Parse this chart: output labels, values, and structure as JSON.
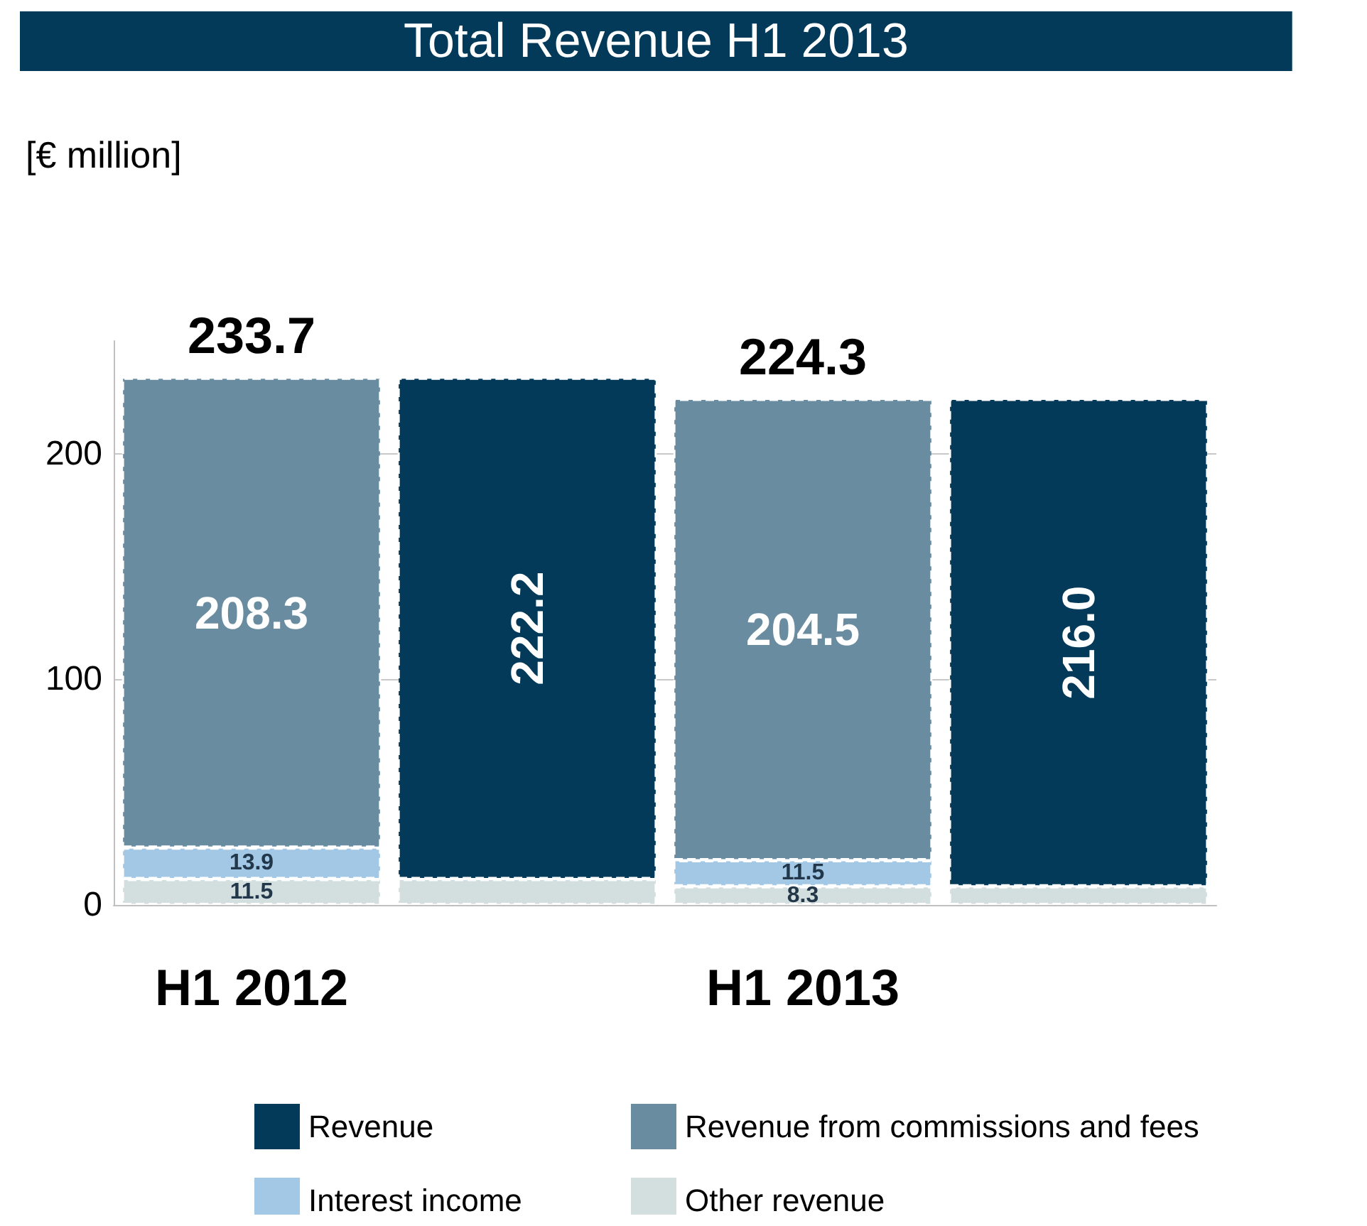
{
  "chart_data": {
    "type": "bar",
    "title": "Total Revenue H1 2013",
    "ylabel": "[€ million]",
    "categories": [
      "H1 2012",
      null,
      "H1 2013",
      null
    ],
    "stacked": true,
    "totals": [
      "233.7",
      null,
      "224.3",
      null
    ],
    "ylim": [
      0,
      250
    ],
    "yticks": [
      0,
      100,
      200
    ],
    "grid": "y",
    "legend": "bottom",
    "series": [
      {
        "name": "Other revenue",
        "color": "#d3dedf",
        "values": [
          11.5,
          11.5,
          8.3,
          8.3
        ],
        "value_labels": [
          "11.5",
          null,
          "8.3",
          null
        ]
      },
      {
        "name": "Interest income",
        "color": "#a2c8e6",
        "values": [
          13.9,
          null,
          11.5,
          null
        ],
        "value_labels": [
          "13.9",
          null,
          "11.5",
          null
        ]
      },
      {
        "name": "Revenue from commissions and fees",
        "color": "#6a8ca0",
        "values": [
          208.3,
          null,
          204.5,
          null
        ],
        "value_labels": [
          "208.3",
          null,
          "204.5",
          null
        ]
      },
      {
        "name": "Revenue",
        "color": "#033a5a",
        "values": [
          null,
          222.2,
          null,
          216.0
        ],
        "value_labels": [
          null,
          "222.2",
          null,
          "216.0"
        ]
      }
    ]
  }
}
